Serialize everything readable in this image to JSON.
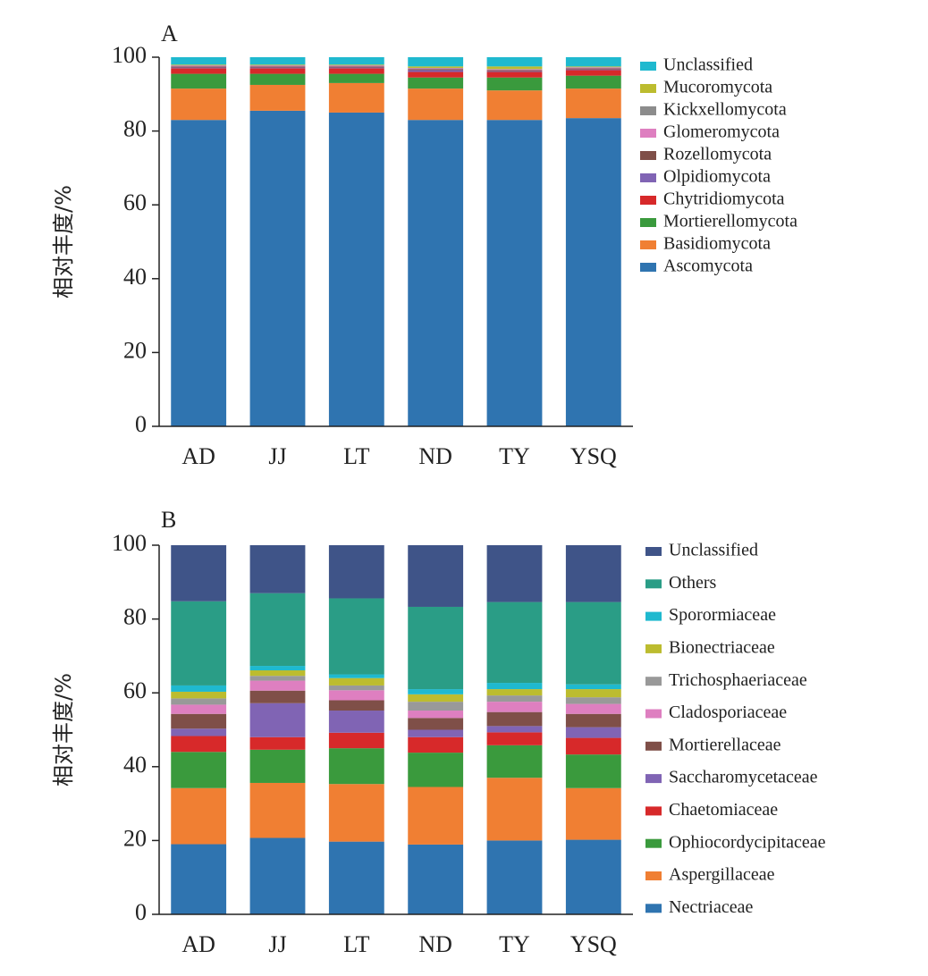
{
  "chart_data": [
    {
      "type": "stacked_bar",
      "title": "A",
      "ylabel": "相对丰度/%",
      "categories": [
        "AD",
        "JJ",
        "LT",
        "ND",
        "TY",
        "YSQ"
      ],
      "ylim": [
        0,
        100
      ],
      "yticks": [
        0,
        20,
        40,
        60,
        80,
        100
      ],
      "series": [
        {
          "name": "Ascomycota",
          "color": "#2f74b0",
          "values": [
            83,
            85.5,
            85,
            83,
            83,
            83.5
          ]
        },
        {
          "name": "Basidiomycota",
          "color": "#f07f33",
          "values": [
            8.5,
            7,
            8,
            8.5,
            8,
            8
          ]
        },
        {
          "name": "Mortierellomycota",
          "color": "#3a9a3d",
          "values": [
            4,
            3,
            2.5,
            3,
            3.5,
            3.5
          ]
        },
        {
          "name": "Chytridiomycota",
          "color": "#d7292a",
          "values": [
            1.5,
            1.5,
            1.5,
            1.5,
            1.5,
            1.5
          ]
        },
        {
          "name": "Olpidiomycota",
          "color": "#8064b4",
          "values": [
            0.2,
            0.2,
            0.2,
            0.5,
            0.2,
            0.2
          ]
        },
        {
          "name": "Rozellomycota",
          "color": "#7f4f48",
          "values": [
            0.3,
            0.3,
            0.3,
            0.3,
            0.3,
            0.3
          ]
        },
        {
          "name": "Glomeromycota",
          "color": "#de7fc0",
          "values": [
            0.2,
            0.2,
            0.2,
            0.2,
            0.2,
            0.2
          ]
        },
        {
          "name": "Kickxellomycota",
          "color": "#8c8c8c",
          "values": [
            0.1,
            0.1,
            0.1,
            0.1,
            0.1,
            0.1
          ]
        },
        {
          "name": "Mucoromycota",
          "color": "#bcbc2f",
          "values": [
            0.2,
            0.2,
            0.2,
            0.4,
            0.7,
            0.2
          ]
        },
        {
          "name": "Unclassified",
          "color": "#1fb9cf",
          "values": [
            2,
            2,
            2,
            2.5,
            2.5,
            2.5
          ]
        }
      ]
    },
    {
      "type": "stacked_bar",
      "title": "B",
      "ylabel": "相对丰度/%",
      "categories": [
        "AD",
        "JJ",
        "LT",
        "ND",
        "TY",
        "YSQ"
      ],
      "ylim": [
        0,
        100
      ],
      "yticks": [
        0,
        20,
        40,
        60,
        80,
        100
      ],
      "series": [
        {
          "name": "Nectriaceae",
          "color": "#2f74b0",
          "values": [
            19,
            20.7,
            19.7,
            18.9,
            20,
            20.2
          ]
        },
        {
          "name": "Aspergillaceae",
          "color": "#f07f33",
          "values": [
            15.2,
            14.9,
            15.6,
            15.6,
            17,
            14
          ]
        },
        {
          "name": "Ophiocordycipitaceae",
          "color": "#3a9a3d",
          "values": [
            9.8,
            9,
            9.7,
            9.3,
            8.8,
            9.1
          ]
        },
        {
          "name": "Chaetomiaceae",
          "color": "#d7292a",
          "values": [
            4.3,
            3.4,
            4.2,
            4.2,
            3.5,
            4.5
          ]
        },
        {
          "name": "Saccharomycetaceae",
          "color": "#8064b4",
          "values": [
            2,
            9.2,
            6,
            2,
            1.7,
            2.9
          ]
        },
        {
          "name": "Mortierellaceae",
          "color": "#7f4f48",
          "values": [
            4,
            3.4,
            2.8,
            3.2,
            3.8,
            3.6
          ]
        },
        {
          "name": "Cladosporiaceae",
          "color": "#de7fc0",
          "values": [
            2.5,
            2.7,
            2.7,
            2,
            2.8,
            2.7
          ]
        },
        {
          "name": "Trichosphaeriaceae",
          "color": "#999999",
          "values": [
            1.7,
            1.3,
            1.3,
            2.4,
            1.7,
            1.8
          ]
        },
        {
          "name": "Bionectriaceae",
          "color": "#bcbc2f",
          "values": [
            1.8,
            1.5,
            2,
            2,
            1.7,
            2.2
          ]
        },
        {
          "name": "Sporormiaceae",
          "color": "#1fb9cf",
          "values": [
            1.7,
            1.2,
            1,
            1.4,
            1.7,
            1.3
          ]
        },
        {
          "name": "Others",
          "color": "#2a9d86",
          "values": [
            22.8,
            19.7,
            20.6,
            22.3,
            21.9,
            22.3
          ]
        },
        {
          "name": "Unclassified",
          "color": "#3f5488",
          "values": [
            15.2,
            13,
            14.4,
            16.7,
            15.4,
            15.4
          ]
        }
      ]
    }
  ]
}
